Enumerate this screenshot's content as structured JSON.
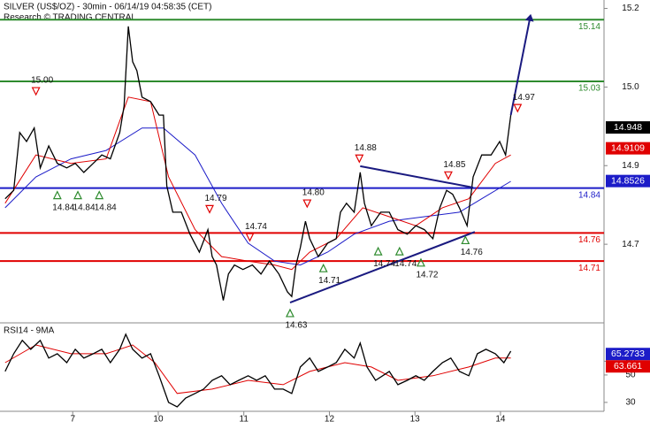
{
  "chart_data": [
    {
      "type": "line",
      "title": "SILVER (US$/OZ) - 30min - 06/14/19 04:58:35 (CET)",
      "subtitle": "Research © TRADING CENTRAL",
      "xlim": [
        6.15,
        13.21
      ],
      "ylim": [
        14.6,
        15.175
      ],
      "yticks": [
        {
          "value": 15.16,
          "label": "15.2"
        },
        {
          "value": 15.02,
          "label": "15.0"
        },
        {
          "value": 14.88,
          "label": "14.9"
        },
        {
          "value": 14.74,
          "label": "14.7"
        }
      ],
      "series": [
        {
          "color": "#000000",
          "x": [
            6.21,
            6.31,
            6.38,
            6.46,
            6.55,
            6.62,
            6.72,
            6.82,
            6.93,
            7.03,
            7.13,
            7.24,
            7.34,
            7.44,
            7.55,
            7.6,
            7.65,
            7.7,
            7.75,
            7.81,
            7.91,
            8.01,
            8.06,
            8.1,
            8.17,
            8.27,
            8.37,
            8.48,
            8.58,
            8.63,
            8.68,
            8.76,
            8.82,
            8.89,
            8.99,
            9.1,
            9.2,
            9.3,
            9.41,
            9.51,
            9.56,
            9.61,
            9.66,
            9.72,
            9.77,
            9.87,
            9.98,
            10.08,
            10.13,
            10.2,
            10.29,
            10.36,
            10.41,
            10.49,
            10.6,
            10.7,
            10.8,
            10.91,
            11.01,
            11.11,
            11.21,
            11.29,
            11.37,
            11.44,
            11.52,
            11.61,
            11.68,
            11.78,
            11.89,
            11.99,
            12.06,
            12.12
          ],
          "values": [
            14.821,
            14.836,
            14.939,
            14.923,
            14.947,
            14.876,
            14.915,
            14.884,
            14.876,
            14.884,
            14.868,
            14.884,
            14.899,
            14.892,
            14.939,
            14.986,
            15.128,
            15.065,
            15.049,
            15.002,
            14.994,
            14.97,
            14.97,
            14.844,
            14.797,
            14.797,
            14.758,
            14.726,
            14.766,
            14.718,
            14.703,
            14.64,
            14.687,
            14.703,
            14.695,
            14.703,
            14.687,
            14.71,
            14.687,
            14.655,
            14.647,
            14.703,
            14.734,
            14.781,
            14.75,
            14.718,
            14.742,
            14.75,
            14.797,
            14.813,
            14.797,
            14.868,
            14.813,
            14.773,
            14.797,
            14.797,
            14.766,
            14.758,
            14.773,
            14.766,
            14.75,
            14.805,
            14.836,
            14.829,
            14.805,
            14.773,
            14.86,
            14.899,
            14.899,
            14.923,
            14.899,
            14.97
          ]
        },
        {
          "color": "#e00000",
          "x": [
            6.21,
            6.57,
            6.98,
            7.39,
            7.65,
            7.91,
            8.12,
            8.43,
            8.74,
            9.05,
            9.36,
            9.56,
            9.77,
            10.08,
            10.39,
            10.7,
            11.01,
            11.32,
            11.63,
            11.94,
            12.12
          ],
          "values": [
            14.813,
            14.899,
            14.884,
            14.892,
            15.002,
            14.994,
            14.86,
            14.766,
            14.718,
            14.71,
            14.703,
            14.695,
            14.726,
            14.75,
            14.805,
            14.789,
            14.773,
            14.805,
            14.821,
            14.884,
            14.899
          ]
        },
        {
          "color": "#1c1cc8",
          "x": [
            6.21,
            6.57,
            6.98,
            7.39,
            7.81,
            8.06,
            8.43,
            8.74,
            9.05,
            9.36,
            9.66,
            9.98,
            10.29,
            10.7,
            11.11,
            11.52,
            11.78,
            12.12
          ],
          "values": [
            14.805,
            14.86,
            14.892,
            14.907,
            14.947,
            14.947,
            14.899,
            14.813,
            14.742,
            14.71,
            14.703,
            14.726,
            14.758,
            14.781,
            14.789,
            14.797,
            14.821,
            14.852
          ]
        }
      ],
      "levels": [
        {
          "value": 15.14,
          "color": "#2e8b2e"
        },
        {
          "value": 15.03,
          "color": "#2e8b2e"
        },
        {
          "value": 14.84,
          "color": "#1c1cc8"
        },
        {
          "value": 14.76,
          "color": "#e00000"
        },
        {
          "value": 14.71,
          "color": "#e00000"
        }
      ],
      "trendlines": [
        {
          "x": [
            10.36,
            11.68
          ],
          "values": [
            14.879,
            14.841
          ]
        },
        {
          "x": [
            9.54,
            11.7
          ],
          "values": [
            14.636,
            14.762
          ]
        },
        {
          "x": [
            12.12,
            12.35
          ],
          "values": [
            14.97,
            15.147
          ],
          "arrow": true
        }
      ],
      "annotations": [
        {
          "x": 6.57,
          "value": 15,
          "label": "15.00",
          "dir": "down"
        },
        {
          "x": 6.82,
          "value": 14.84,
          "dir": "up"
        },
        {
          "x": 7.06,
          "value": 14.84,
          "dir": "up"
        },
        {
          "x": 7.31,
          "value": 14.84,
          "dir": "up"
        },
        {
          "x": 8.6,
          "value": 14.79,
          "dir": "down"
        },
        {
          "x": 9.07,
          "value": 14.74,
          "dir": "down"
        },
        {
          "x": 9.54,
          "value": 14.63,
          "dir": "up"
        },
        {
          "x": 9.74,
          "value": 14.8,
          "label": "14.80",
          "dir": "down"
        },
        {
          "x": 9.93,
          "value": 14.71,
          "dir": "up"
        },
        {
          "x": 10.35,
          "value": 14.88,
          "dir": "down"
        },
        {
          "x": 10.57,
          "value": 14.74,
          "dir": "up"
        },
        {
          "x": 10.82,
          "value": 14.74,
          "dir": "up"
        },
        {
          "x": 11.07,
          "value": 14.72,
          "dir": "up"
        },
        {
          "x": 11.39,
          "value": 14.85,
          "dir": "down"
        },
        {
          "x": 11.59,
          "value": 14.76,
          "dir": "up"
        },
        {
          "x": 12.2,
          "value": 14.97,
          "dir": "down"
        }
      ],
      "last_values": [
        {
          "value": 14.948,
          "color": "#000000"
        },
        {
          "value": 14.9109,
          "color": "#e00000"
        },
        {
          "value": 14.8526,
          "color": "#1c1cc8"
        }
      ]
    },
    {
      "type": "line",
      "title": "RSI14 - 9MA",
      "xlim": [
        6.15,
        13.21
      ],
      "xticks": [
        7,
        {
          "value": 8,
          "label": "10"
        },
        {
          "value": 9,
          "label": "11"
        },
        {
          "value": 10,
          "label": "12"
        },
        {
          "value": 11,
          "label": "13"
        },
        {
          "value": 12,
          "label": "14"
        }
      ],
      "ylim": [
        23.5,
        88
      ],
      "yticks": [
        30,
        50,
        60
      ],
      "series": [
        {
          "color": "#000000",
          "x": [
            6.21,
            6.31,
            6.41,
            6.51,
            6.62,
            6.72,
            6.82,
            6.93,
            7.03,
            7.13,
            7.24,
            7.34,
            7.44,
            7.55,
            7.62,
            7.7,
            7.81,
            7.91,
            8.01,
            8.12,
            8.22,
            8.32,
            8.43,
            8.53,
            8.63,
            8.74,
            8.84,
            8.94,
            9.05,
            9.15,
            9.25,
            9.36,
            9.46,
            9.56,
            9.66,
            9.77,
            9.87,
            9.98,
            10.08,
            10.18,
            10.29,
            10.36,
            10.44,
            10.54,
            10.7,
            10.8,
            10.91,
            11.01,
            11.11,
            11.21,
            11.32,
            11.42,
            11.52,
            11.63,
            11.73,
            11.83,
            11.94,
            12.04,
            12.12
          ],
          "values": [
            52.6,
            65.5,
            75.2,
            68.7,
            75.2,
            62.3,
            65.5,
            59.0,
            68.7,
            62.3,
            65.5,
            68.7,
            59.0,
            68.7,
            79.7,
            68.7,
            62.3,
            65.5,
            49.4,
            30.0,
            26.8,
            33.2,
            36.5,
            39.7,
            46.1,
            49.4,
            42.9,
            46.1,
            49.4,
            46.1,
            49.4,
            39.7,
            39.7,
            36.5,
            55.8,
            62.3,
            52.6,
            55.8,
            59.0,
            68.7,
            62.3,
            73.2,
            55.8,
            46.1,
            52.6,
            42.9,
            46.1,
            49.4,
            46.1,
            52.6,
            59.0,
            62.3,
            52.6,
            49.4,
            65.5,
            68.7,
            65.5,
            59.0,
            67.4
          ]
        },
        {
          "color": "#e00000",
          "x": [
            6.21,
            6.57,
            6.98,
            7.39,
            7.7,
            7.96,
            8.22,
            8.63,
            9.05,
            9.46,
            9.77,
            10.18,
            10.49,
            10.8,
            11.21,
            11.63,
            11.94,
            12.12
          ],
          "values": [
            59.0,
            71.9,
            65.5,
            65.5,
            71.9,
            59.0,
            36.5,
            39.7,
            46.1,
            42.9,
            52.6,
            59.0,
            55.8,
            46.1,
            49.4,
            55.8,
            62.3,
            62.3
          ]
        }
      ],
      "last_values": [
        {
          "value": 65.2733,
          "color": "#1c1cc8"
        },
        {
          "value": 63.661,
          "color": "#e00000"
        }
      ]
    }
  ]
}
